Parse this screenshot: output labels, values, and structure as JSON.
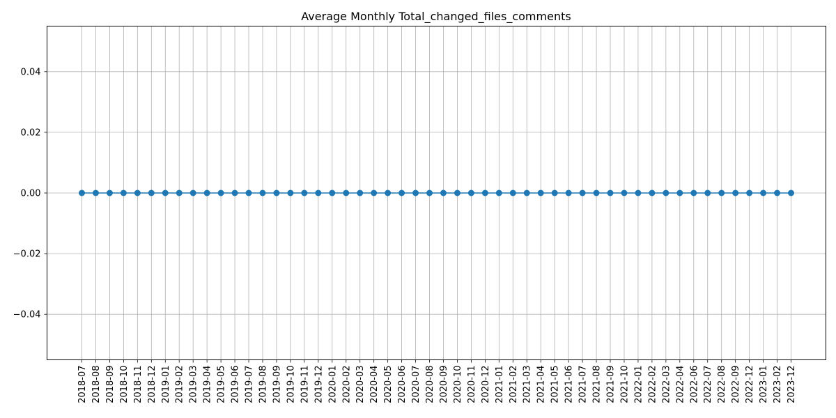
{
  "chart_data": {
    "type": "line",
    "title": "Average Monthly Total_changed_files_comments",
    "xlabel": "",
    "ylabel": "",
    "x": [
      "2018-07",
      "2018-08",
      "2018-09",
      "2018-10",
      "2018-11",
      "2018-12",
      "2019-01",
      "2019-02",
      "2019-03",
      "2019-04",
      "2019-05",
      "2019-06",
      "2019-07",
      "2019-08",
      "2019-09",
      "2019-10",
      "2019-11",
      "2019-12",
      "2020-01",
      "2020-02",
      "2020-03",
      "2020-04",
      "2020-05",
      "2020-06",
      "2020-07",
      "2020-08",
      "2020-09",
      "2020-10",
      "2020-11",
      "2020-12",
      "2021-01",
      "2021-02",
      "2021-03",
      "2021-04",
      "2021-05",
      "2021-06",
      "2021-07",
      "2021-08",
      "2021-09",
      "2021-10",
      "2022-01",
      "2022-02",
      "2022-03",
      "2022-04",
      "2022-06",
      "2022-07",
      "2022-08",
      "2022-09",
      "2022-12",
      "2023-01",
      "2023-02",
      "2023-12"
    ],
    "series": [
      {
        "values": [
          0,
          0,
          0,
          0,
          0,
          0,
          0,
          0,
          0,
          0,
          0,
          0,
          0,
          0,
          0,
          0,
          0,
          0,
          0,
          0,
          0,
          0,
          0,
          0,
          0,
          0,
          0,
          0,
          0,
          0,
          0,
          0,
          0,
          0,
          0,
          0,
          0,
          0,
          0,
          0,
          0,
          0,
          0,
          0,
          0,
          0,
          0,
          0,
          0,
          0,
          0,
          0
        ],
        "color": "#1f77b4",
        "marker": "circle"
      }
    ],
    "ylim": [
      -0.055,
      0.055
    ],
    "yticks": [
      -0.04,
      -0.02,
      0.0,
      0.02,
      0.04
    ],
    "ytick_labels": [
      "−0.04",
      "−0.02",
      "0.00",
      "0.02",
      "0.04"
    ],
    "grid": true,
    "grid_color": "#b0b0b0",
    "legend": "none"
  }
}
